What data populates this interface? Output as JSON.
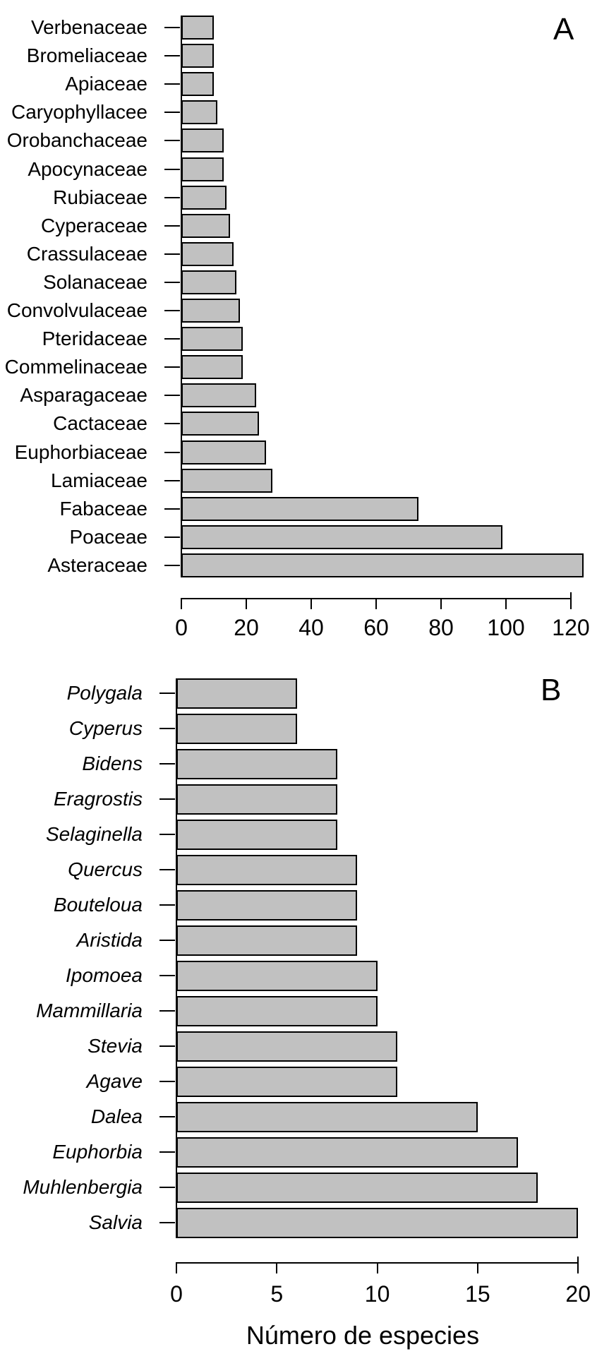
{
  "figure": {
    "background": "#ffffff",
    "colors": {
      "bar_fill": "#c1c1c1",
      "bar_border": "#000000",
      "text": "#000000"
    }
  },
  "chart_data": [
    {
      "type": "bar",
      "orientation": "horizontal",
      "panel_label": "A",
      "title": "",
      "xlabel": "",
      "ylabel": "",
      "categories": [
        "Verbenaceae",
        "Bromeliaceae",
        "Apiaceae",
        "Caryophyllacee",
        "Orobanchaceae",
        "Apocynaceae",
        "Rubiaceae",
        "Cyperaceae",
        "Crassulaceae",
        "Solanaceae",
        "Convolvulaceae",
        "Pteridaceae",
        "Commelinaceae",
        "Asparagaceae",
        "Cactaceae",
        "Euphorbiaceae",
        "Lamiaceae",
        "Fabaceae",
        "Poaceae",
        "Asteraceae"
      ],
      "values": [
        10,
        10,
        10,
        11,
        13,
        13,
        14,
        15,
        16,
        17,
        18,
        19,
        19,
        23,
        24,
        26,
        28,
        73,
        99,
        124
      ],
      "xticks": [
        0,
        20,
        40,
        60,
        80,
        100,
        120
      ],
      "xlim": [
        0,
        124
      ],
      "grid": false,
      "legend": false,
      "italic_category_labels": false
    },
    {
      "type": "bar",
      "orientation": "horizontal",
      "panel_label": "B",
      "title": "",
      "xlabel": "Número de especies",
      "ylabel": "",
      "categories": [
        "Polygala",
        "Cyperus",
        "Bidens",
        "Eragrostis",
        "Selaginella",
        "Quercus",
        "Bouteloua",
        "Aristida",
        "Ipomoea",
        "Mammillaria",
        "Stevia",
        "Agave",
        "Dalea",
        "Euphorbia",
        "Muhlenbergia",
        "Salvia"
      ],
      "values": [
        6,
        6,
        8,
        8,
        8,
        9,
        9,
        9,
        10,
        10,
        11,
        11,
        15,
        17,
        18,
        20
      ],
      "xticks": [
        0,
        5,
        10,
        15,
        20
      ],
      "xlim": [
        0,
        20
      ],
      "grid": false,
      "legend": false,
      "italic_category_labels": true
    }
  ]
}
